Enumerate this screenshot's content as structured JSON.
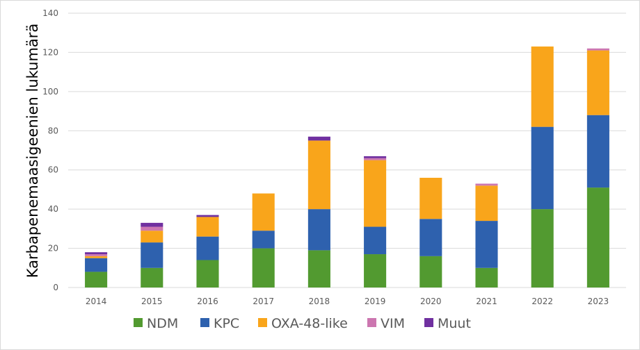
{
  "chart_data": {
    "type": "bar",
    "stacked": true,
    "title": "",
    "xlabel": "",
    "ylabel": "Karbapenemaasigeenien lukumärä",
    "ylim": [
      0,
      140
    ],
    "yticks": [
      0,
      20,
      40,
      60,
      80,
      100,
      120,
      140
    ],
    "grid": true,
    "legend_position": "bottom",
    "categories": [
      "2014",
      "2015",
      "2016",
      "2017",
      "2018",
      "2019",
      "2020",
      "2021",
      "2022",
      "2023"
    ],
    "series": [
      {
        "name": "NDM",
        "color": "#529A30",
        "values": [
          8,
          10,
          14,
          20,
          19,
          17,
          16,
          10,
          40,
          51
        ]
      },
      {
        "name": "KPC",
        "color": "#2E61AE",
        "values": [
          7,
          13,
          12,
          9,
          21,
          14,
          19,
          24,
          42,
          37
        ]
      },
      {
        "name": "OXA-48-like",
        "color": "#F9A51B",
        "values": [
          1,
          6,
          10,
          19,
          35,
          34,
          21,
          18,
          41,
          33
        ]
      },
      {
        "name": "VIM",
        "color": "#CC76B0",
        "values": [
          1,
          2,
          0,
          0,
          0,
          1,
          0,
          1,
          0,
          1
        ]
      },
      {
        "name": "Muut",
        "color": "#7030A0",
        "values": [
          1,
          2,
          1,
          0,
          2,
          1,
          0,
          0,
          0,
          0
        ]
      }
    ]
  }
}
